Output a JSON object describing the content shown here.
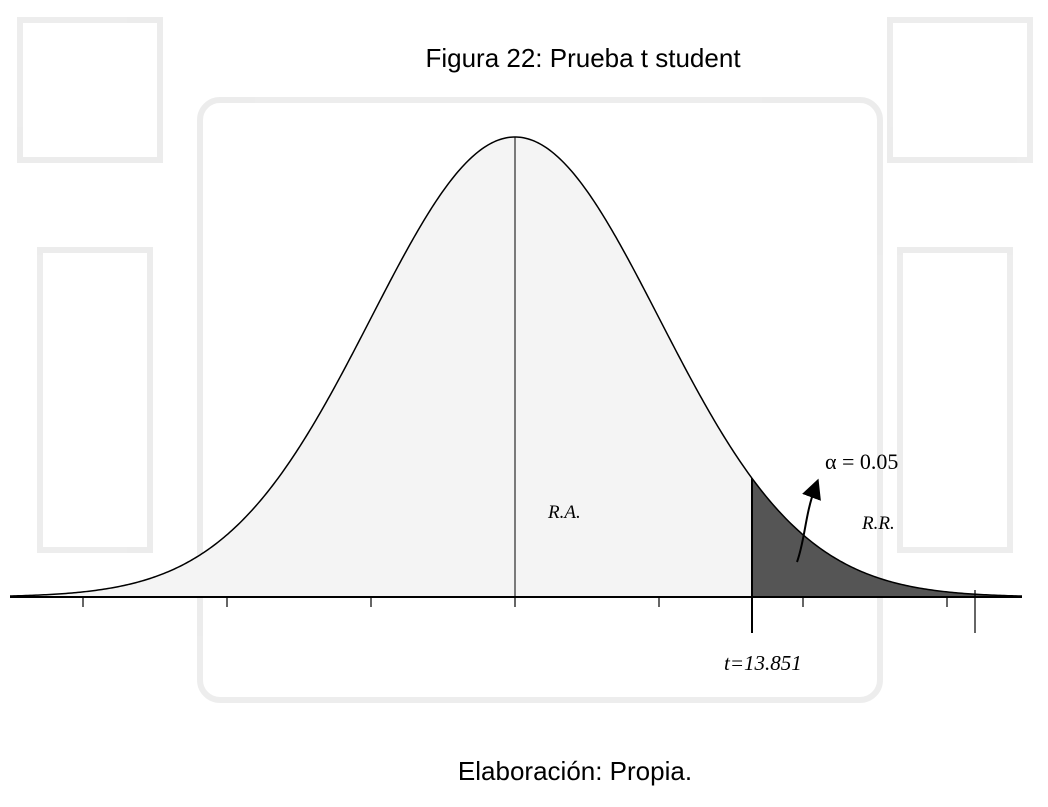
{
  "header": {
    "title": "Figura 22: Prueba t student"
  },
  "diagram": {
    "acceptance_label": "R.A.",
    "rejection_label": "R.R.",
    "alpha_label": "α = 0.05",
    "t_label": "t=13.851"
  },
  "footer": {
    "caption": "Elaboración: Propia."
  }
}
